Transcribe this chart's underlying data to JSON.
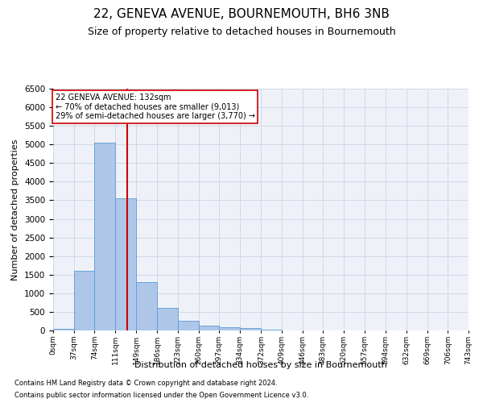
{
  "title1": "22, GENEVA AVENUE, BOURNEMOUTH, BH6 3NB",
  "title2": "Size of property relative to detached houses in Bournemouth",
  "xlabel": "Distribution of detached houses by size in Bournemouth",
  "ylabel": "Number of detached properties",
  "footnote1": "Contains HM Land Registry data © Crown copyright and database right 2024.",
  "footnote2": "Contains public sector information licensed under the Open Government Licence v3.0.",
  "bar_edges": [
    0,
    37,
    74,
    111,
    149,
    186,
    223,
    260,
    297,
    334,
    372,
    409,
    446,
    483,
    520,
    557,
    594,
    632,
    669,
    706,
    743
  ],
  "bar_heights": [
    50,
    1600,
    5050,
    3550,
    1300,
    600,
    270,
    120,
    90,
    55,
    30,
    10,
    5,
    2,
    1,
    0,
    0,
    0,
    0,
    0
  ],
  "bar_color": "#aec6e8",
  "bar_edge_color": "#5b9bd5",
  "grid_color": "#d0d8e8",
  "vline_x": 132,
  "vline_color": "#cc0000",
  "annotation_line1": "22 GENEVA AVENUE: 132sqm",
  "annotation_line2": "← 70% of detached houses are smaller (9,013)",
  "annotation_line3": "29% of semi-detached houses are larger (3,770) →",
  "annotation_box_color": "#ffffff",
  "annotation_box_edge": "#cc0000",
  "ylim": [
    0,
    6500
  ],
  "yticks": [
    0,
    500,
    1000,
    1500,
    2000,
    2500,
    3000,
    3500,
    4000,
    4500,
    5000,
    5500,
    6000,
    6500
  ],
  "bg_color": "#eef2f8",
  "fig_bg_color": "#ffffff",
  "title1_fontsize": 11,
  "title2_fontsize": 9,
  "xlabel_fontsize": 8,
  "ylabel_fontsize": 8,
  "footnote_fontsize": 6
}
